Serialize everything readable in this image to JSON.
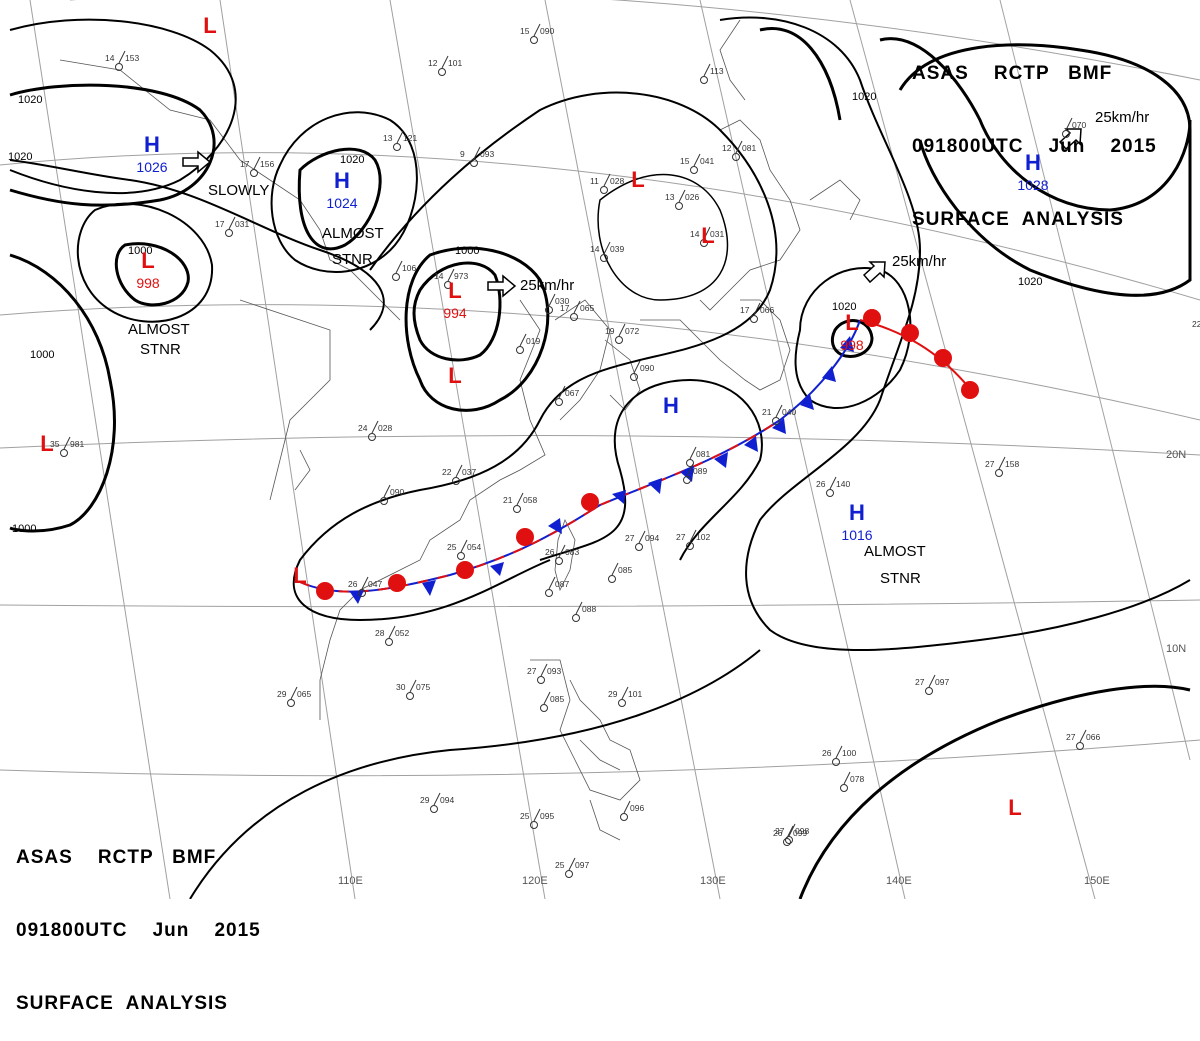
{
  "header": {
    "line1": "ASAS    RCTP   BMF",
    "line2": "091800UTC    Jun    2015",
    "line3": "SURFACE  ANALYSIS"
  },
  "colors": {
    "high": "#1020d0",
    "low": "#e01010",
    "warm_front": "#e01010",
    "cold_front": "#1020d0",
    "isobar": "#000000",
    "grid": "#a0a0a0"
  },
  "longitude_labels": [
    "110E",
    "120E",
    "130E",
    "140E",
    "150E"
  ],
  "latitude_labels": [
    "20N",
    "10N"
  ],
  "pressure_centers": [
    {
      "type": "H",
      "pressure": "1026"
    },
    {
      "type": "H",
      "pressure": "1024"
    },
    {
      "type": "L",
      "pressure": "998"
    },
    {
      "type": "L",
      "pressure": "994"
    },
    {
      "type": "L",
      "pressure": ""
    },
    {
      "type": "L",
      "pressure": ""
    },
    {
      "type": "L",
      "pressure": ""
    },
    {
      "type": "L",
      "pressure": ""
    },
    {
      "type": "L",
      "pressure": ""
    },
    {
      "type": "L",
      "pressure": ""
    },
    {
      "type": "L",
      "pressure": "998"
    },
    {
      "type": "H",
      "pressure": "1028"
    },
    {
      "type": "H",
      "pressure": ""
    },
    {
      "type": "H",
      "pressure": "1016"
    },
    {
      "type": "L",
      "pressure": ""
    }
  ],
  "isobar_labels": [
    "1020",
    "1020",
    "1000",
    "1020",
    "1000",
    "1000",
    "1020",
    "1020",
    "1000"
  ],
  "annotations": [
    "SLOWLY",
    "ALMOST",
    "STNR",
    "ALMOST",
    "STNR",
    "25km/hr",
    "25km/hr",
    "25km/hr",
    "ALMOST",
    "STNR"
  ],
  "stations": [
    {
      "t": "15",
      "p": "090"
    },
    {
      "t": "",
      "p": "113"
    },
    {
      "t": "14",
      "p": "153"
    },
    {
      "t": "12",
      "p": "101"
    },
    {
      "t": "13",
      "p": "121"
    },
    {
      "t": "17",
      "p": "156"
    },
    {
      "t": "9",
      "p": "093"
    },
    {
      "t": "15",
      "p": "041"
    },
    {
      "t": "12",
      "p": "081"
    },
    {
      "t": "11",
      "p": "028"
    },
    {
      "t": "13",
      "p": "026"
    },
    {
      "t": "14",
      "p": "031"
    },
    {
      "t": "17",
      "p": "031"
    },
    {
      "t": "",
      "p": "106"
    },
    {
      "t": "14",
      "p": "973"
    },
    {
      "t": "14",
      "p": "039"
    },
    {
      "t": "",
      "p": "030"
    },
    {
      "t": "17",
      "p": "065"
    },
    {
      "t": "19",
      "p": "072"
    },
    {
      "t": "",
      "p": "019"
    },
    {
      "t": "",
      "p": "090"
    },
    {
      "t": "17",
      "p": "066"
    },
    {
      "t": "21",
      "p": "040"
    },
    {
      "t": "22",
      "p": "187"
    },
    {
      "t": "35",
      "p": "981"
    },
    {
      "t": "24",
      "p": "028"
    },
    {
      "t": "",
      "p": "067"
    },
    {
      "t": "22",
      "p": "037"
    },
    {
      "t": "",
      "p": "090"
    },
    {
      "t": "21",
      "p": "058"
    },
    {
      "t": "25",
      "p": "054"
    },
    {
      "t": "26",
      "p": "083"
    },
    {
      "t": "",
      "p": "087"
    },
    {
      "t": "27",
      "p": "094"
    },
    {
      "t": "27",
      "p": "102"
    },
    {
      "t": "26",
      "p": "140"
    },
    {
      "t": "27",
      "p": "158"
    },
    {
      "t": "26",
      "p": "047"
    },
    {
      "t": "28",
      "p": "052"
    },
    {
      "t": "",
      "p": "085"
    },
    {
      "t": "",
      "p": "088"
    },
    {
      "t": "29",
      "p": "065"
    },
    {
      "t": "30",
      "p": "075"
    },
    {
      "t": "27",
      "p": "093"
    },
    {
      "t": "",
      "p": "085"
    },
    {
      "t": "29",
      "p": "101"
    },
    {
      "t": "27",
      "p": "097"
    },
    {
      "t": "27",
      "p": "066"
    },
    {
      "t": "26",
      "p": "100"
    },
    {
      "t": "",
      "p": "078"
    },
    {
      "t": "27",
      "p": "098"
    },
    {
      "t": "29",
      "p": "094"
    },
    {
      "t": "25",
      "p": "095"
    },
    {
      "t": "",
      "p": "096"
    },
    {
      "t": "25",
      "p": "097"
    },
    {
      "t": "26",
      "p": "099"
    },
    {
      "t": "",
      "p": "070"
    },
    {
      "t": "",
      "p": "081"
    },
    {
      "t": "",
      "p": "089"
    }
  ]
}
